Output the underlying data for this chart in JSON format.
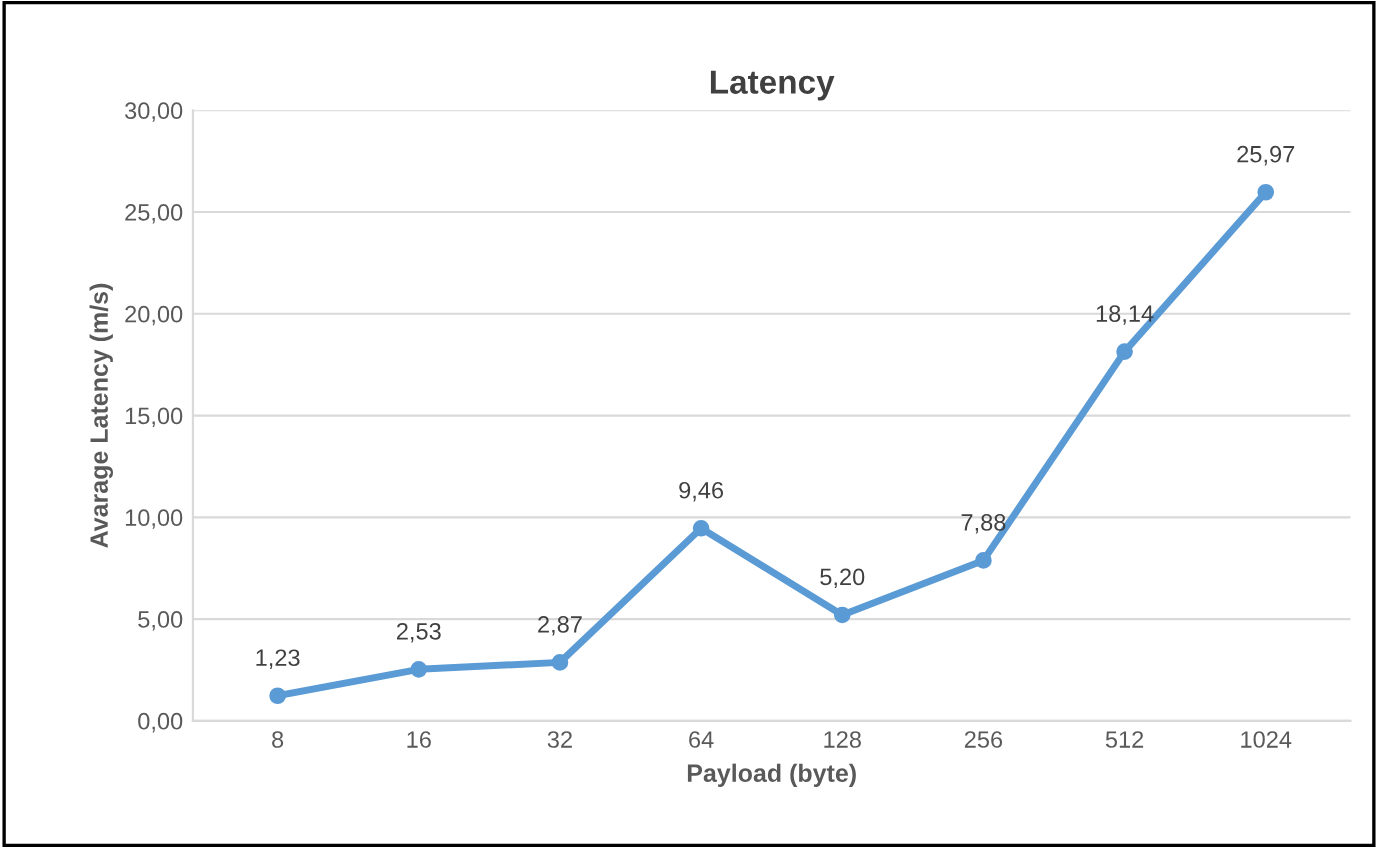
{
  "chart_data": {
    "type": "line",
    "title": "Latency",
    "xlabel": "Payload (byte)",
    "ylabel": "Avarage Latency (m/s)",
    "categories": [
      "8",
      "16",
      "32",
      "64",
      "128",
      "256",
      "512",
      "1024"
    ],
    "series": [
      {
        "color": "#5b9bd5",
        "values": [
          1.23,
          2.53,
          2.87,
          9.46,
          5.2,
          7.88,
          18.14,
          25.97
        ],
        "value_labels": [
          "1,23",
          "2,53",
          "2,87",
          "9,46",
          "5,20",
          "7,88",
          "18,14",
          "25,97"
        ]
      }
    ],
    "ylim": [
      0,
      30
    ],
    "yticks": [
      {
        "value": 0,
        "label": "0,00"
      },
      {
        "value": 5,
        "label": "5,00"
      },
      {
        "value": 10,
        "label": "10,00"
      },
      {
        "value": 15,
        "label": "15,00"
      },
      {
        "value": 20,
        "label": "20,00"
      },
      {
        "value": 25,
        "label": "25,00"
      },
      {
        "value": 30,
        "label": "30,00"
      }
    ],
    "grid": "y",
    "marker": "circle",
    "line_style": "solid",
    "legend": false
  }
}
